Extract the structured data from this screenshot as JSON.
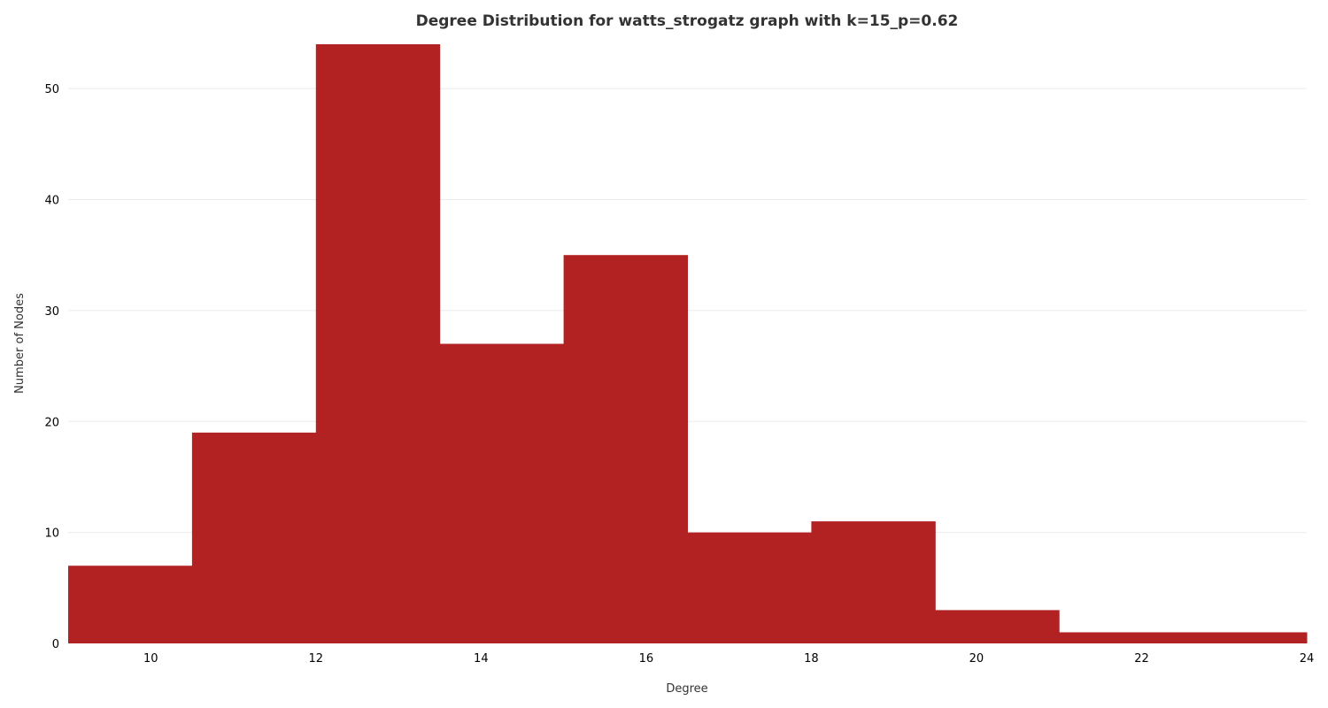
{
  "chart_data": {
    "type": "bar",
    "title": "Degree Distribution for watts_strogatz graph with k=15_p=0.62",
    "xlabel": "Degree",
    "ylabel": "Number of Nodes",
    "bin_edges": [
      9,
      10.5,
      12,
      13.5,
      15,
      16.5,
      18,
      19.5,
      21,
      22.5,
      24
    ],
    "values": [
      7,
      19,
      54,
      27,
      35,
      10,
      11,
      3,
      1,
      1
    ],
    "xlim": [
      9,
      24
    ],
    "ylim": [
      0,
      54
    ],
    "x_ticks": [
      10,
      12,
      14,
      16,
      18,
      20,
      22,
      24
    ],
    "y_ticks": [
      0,
      10,
      20,
      30,
      40,
      50
    ],
    "grid": true,
    "bar_color": "#b22222",
    "grid_color": "#ebebeb"
  }
}
